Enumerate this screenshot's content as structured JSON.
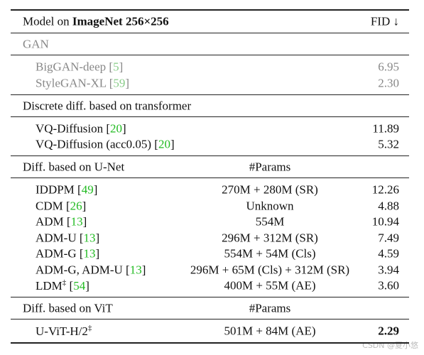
{
  "header": {
    "model_prefix": "Model on ",
    "model_bold": "ImageNet 256×256",
    "fid": "FID ↓"
  },
  "sections": [
    {
      "title": "GAN",
      "muted": true,
      "rows": [
        {
          "model": "BigGAN-deep",
          "cite": "[5]",
          "fid": "6.95"
        },
        {
          "model": "StyleGAN-XL",
          "cite": "[59]",
          "fid": "2.30"
        }
      ]
    },
    {
      "title": "Discrete diff. based on transformer",
      "rows": [
        {
          "model": "VQ-Diffusion",
          "cite": "[20]",
          "fid": "11.89"
        },
        {
          "model": "VQ-Diffusion (acc0.05)",
          "cite": "[20]",
          "fid": "5.32"
        }
      ]
    },
    {
      "title": "Diff. based on U-Net",
      "params_header": "#Params",
      "rows": [
        {
          "model": "IDDPM",
          "cite": "[49]",
          "params": "270M + 280M (SR)",
          "fid": "12.26"
        },
        {
          "model": "CDM",
          "cite": "[26]",
          "params": "Unknown",
          "fid": "4.88"
        },
        {
          "model": "ADM",
          "cite": "[13]",
          "params": "554M",
          "fid": "10.94"
        },
        {
          "model": "ADM-U",
          "cite": "[13]",
          "params": "296M + 312M (SR)",
          "fid": "7.49"
        },
        {
          "model": "ADM-G",
          "cite": "[13]",
          "params": "554M + 54M (Cls)",
          "fid": "4.59"
        },
        {
          "model": "ADM-G, ADM-U",
          "cite": "[13]",
          "params": "296M + 65M (Cls) + 312M (SR)",
          "fid": "3.94"
        },
        {
          "model": "LDM",
          "mark": "‡",
          "cite": "[54]",
          "params": "400M + 55M (AE)",
          "fid": "3.60"
        }
      ]
    },
    {
      "title": "Diff. based on ViT",
      "params_header": "#Params",
      "rows": [
        {
          "model": "U-ViT-H/2",
          "mark": "‡",
          "params": "501M + 84M (AE)",
          "fid": "2.29",
          "bold": true
        }
      ]
    }
  ],
  "watermark": "CSDN @夏小悠"
}
